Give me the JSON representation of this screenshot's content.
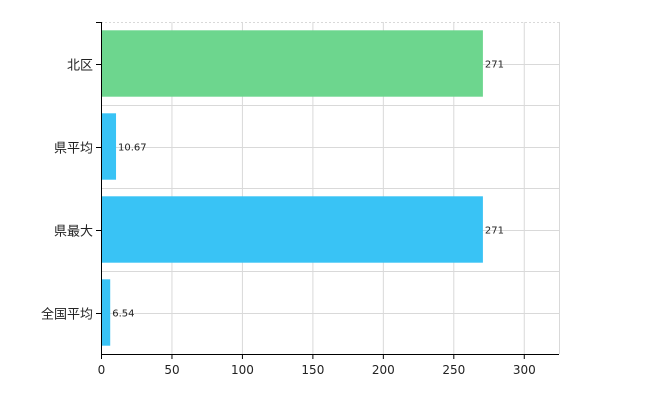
{
  "chart_data": {
    "type": "bar",
    "orientation": "horizontal",
    "categories": [
      "北区",
      "県平均",
      "県最大",
      "全国平均"
    ],
    "values": [
      271,
      10.67,
      271,
      6.54
    ],
    "data_labels": [
      "271",
      "10.67",
      "271",
      "6.54"
    ],
    "bar_colors": [
      "#6dd68e",
      "#39c3f5",
      "#39c3f5",
      "#39c3f5"
    ],
    "xlim": [
      0,
      325
    ],
    "x_ticks": [
      0,
      50,
      100,
      150,
      200,
      250,
      300
    ],
    "grid": true,
    "legend": "none",
    "title": "",
    "xlabel": "",
    "ylabel": ""
  }
}
